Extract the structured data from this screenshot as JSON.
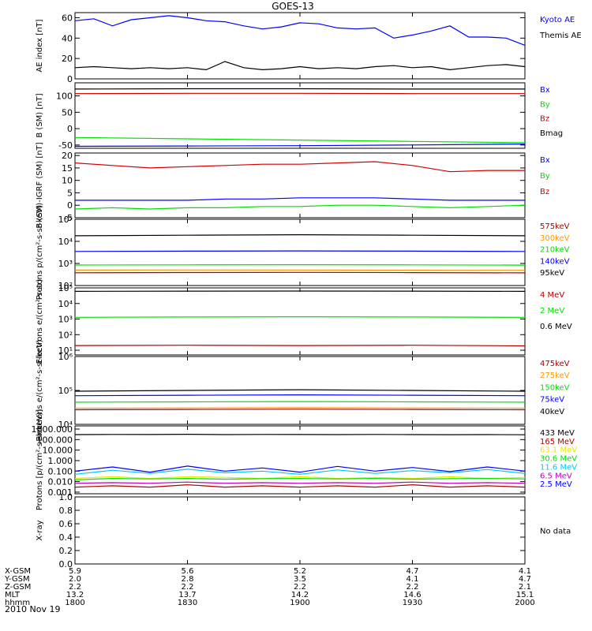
{
  "title": "GOES-13",
  "date": "2010 Nov 19",
  "colors": {
    "black": "#000000",
    "blue": "#0000ff",
    "green": "#00e000",
    "red": "#d00000",
    "darkred": "#b00000",
    "orange": "#ff9900",
    "yellow": "#e8e800",
    "cyan": "#00c8ff",
    "purple": "#c000c0"
  },
  "chart_data": [
    {
      "type": "line",
      "ylabel": "AE index [nT]",
      "ylim": [
        0,
        65
      ],
      "yticks": [
        0,
        20,
        40,
        60
      ],
      "yticklabels": [
        "0",
        "20",
        "40",
        "60"
      ],
      "scale": "linear",
      "x": [
        "1800",
        "1805",
        "1810",
        "1815",
        "1820",
        "1825",
        "1830",
        "1835",
        "1840",
        "1845",
        "1850",
        "1855",
        "1900",
        "1905",
        "1910",
        "1915",
        "1920",
        "1925",
        "1930",
        "1935",
        "1940",
        "1945",
        "1950",
        "1955",
        "2000"
      ],
      "series": [
        {
          "name": "Kyoto AE",
          "color": "blue",
          "values": [
            57,
            59,
            52,
            58,
            60,
            62,
            60,
            57,
            56,
            52,
            49,
            51,
            55,
            54,
            50,
            49,
            50,
            40,
            43,
            47,
            52,
            41,
            41,
            40,
            33
          ]
        },
        {
          "name": "Themis AE",
          "color": "black",
          "values": [
            11,
            12,
            11,
            10,
            11,
            10,
            11,
            9,
            17,
            11,
            9,
            10,
            12,
            10,
            11,
            10,
            12,
            13,
            11,
            12,
            9,
            11,
            13,
            14,
            12
          ]
        }
      ]
    },
    {
      "type": "line",
      "ylabel": "B (SM) [nT]",
      "ylim": [
        -60,
        140
      ],
      "yticks": [
        -50,
        0,
        50,
        100
      ],
      "yticklabels": [
        "-50",
        "0",
        "50",
        "100"
      ],
      "scale": "linear",
      "x": [
        "1800",
        "1830",
        "1900",
        "1930",
        "2000"
      ],
      "series": [
        {
          "name": "Bx",
          "color": "blue",
          "values": [
            -54,
            -53,
            -52,
            -50,
            -47
          ]
        },
        {
          "name": "By",
          "color": "green",
          "values": [
            -27,
            -31,
            -35,
            -39,
            -43
          ]
        },
        {
          "name": "Bz",
          "color": "red",
          "values": [
            107,
            108,
            108,
            107,
            107
          ]
        },
        {
          "name": "Bmag",
          "color": "black",
          "values": [
            121,
            122,
            122,
            121,
            121
          ]
        }
      ]
    },
    {
      "type": "line",
      "ylabel": "B (SM)-IGRF (SM) [nT]",
      "ylim": [
        -5,
        21
      ],
      "yticks": [
        -5,
        0,
        5,
        10,
        15,
        20
      ],
      "yticklabels": [
        "-5",
        "0",
        "5",
        "10",
        "15",
        "20"
      ],
      "scale": "linear",
      "x": [
        "1800",
        "1810",
        "1820",
        "1830",
        "1840",
        "1850",
        "1900",
        "1910",
        "1920",
        "1930",
        "1940",
        "1950",
        "2000"
      ],
      "series": [
        {
          "name": "Bx",
          "color": "blue",
          "values": [
            2,
            2,
            2,
            2,
            2.5,
            2.5,
            3,
            3,
            3,
            2.5,
            2,
            2,
            2
          ]
        },
        {
          "name": "By",
          "color": "green",
          "values": [
            -1.5,
            -1,
            -1.5,
            -1,
            -1,
            -0.5,
            -0.5,
            0,
            0,
            -0.5,
            -1,
            -0.5,
            0
          ]
        },
        {
          "name": "Bz",
          "color": "red",
          "values": [
            17,
            16,
            15,
            15.5,
            16,
            16.5,
            16.5,
            17,
            17.5,
            16,
            13.5,
            14,
            14
          ]
        }
      ]
    },
    {
      "type": "line",
      "ylabel": "Protons p/(cm²-s-sr-keV)",
      "ylim": [
        100,
        100000
      ],
      "yticks": [
        100,
        1000,
        10000,
        100000
      ],
      "yticklabels": [
        "10²",
        "10³",
        "10⁴",
        "10⁵"
      ],
      "scale": "log",
      "x": [
        "1800",
        "1830",
        "1900",
        "1930",
        "2000"
      ],
      "series": [
        {
          "name": "575keV",
          "color": "darkred",
          "values": [
            380,
            390,
            395,
            385,
            375
          ]
        },
        {
          "name": "300keV",
          "color": "orange",
          "values": [
            500,
            510,
            505,
            495,
            490
          ]
        },
        {
          "name": "210keV",
          "color": "green",
          "values": [
            850,
            860,
            880,
            860,
            840
          ]
        },
        {
          "name": "140keV",
          "color": "blue",
          "values": [
            3500,
            3600,
            3700,
            3600,
            3500
          ]
        },
        {
          "name": "95keV",
          "color": "black",
          "values": [
            18000,
            19000,
            20000,
            19000,
            18000
          ]
        }
      ]
    },
    {
      "type": "line",
      "ylabel": "Electrons e/(cm²-s-sr)",
      "ylim": [
        5,
        100000
      ],
      "yticks": [
        10,
        100,
        1000,
        10000,
        100000
      ],
      "yticklabels": [
        "10¹",
        "10²",
        "10³",
        "10⁴",
        "10⁵"
      ],
      "scale": "log",
      "x": [
        "1800",
        "1830",
        "1900",
        "1930",
        "2000"
      ],
      "series": [
        {
          "name": "4 MeV",
          "color": "darkred",
          "values": [
            20,
            21,
            20,
            21,
            19
          ]
        },
        {
          "name": "2 MeV",
          "color": "green",
          "values": [
            1300,
            1350,
            1400,
            1350,
            1300
          ]
        },
        {
          "name": "0.6 MeV",
          "color": "black",
          "values": [
            60000,
            62000,
            63000,
            62000,
            60000
          ]
        }
      ]
    },
    {
      "type": "line",
      "ylabel": "Electrons e/(cm²-s-sr-keV)",
      "ylim": [
        10000,
        1000000
      ],
      "yticks": [
        10000,
        100000,
        1000000
      ],
      "yticklabels": [
        "10⁴",
        "10⁵",
        "10⁶"
      ],
      "scale": "log",
      "x": [
        "1800",
        "1830",
        "1900",
        "1930",
        "2000"
      ],
      "series": [
        {
          "name": "475keV",
          "color": "darkred",
          "values": [
            27000,
            27500,
            28000,
            27500,
            27000
          ]
        },
        {
          "name": "275keV",
          "color": "orange",
          "values": [
            30000,
            30500,
            31000,
            30500,
            30000
          ]
        },
        {
          "name": "150keV",
          "color": "green",
          "values": [
            45000,
            46000,
            47000,
            46000,
            45000
          ]
        },
        {
          "name": "75keV",
          "color": "blue",
          "values": [
            70000,
            72000,
            74000,
            72000,
            70000
          ]
        },
        {
          "name": "40keV",
          "color": "black",
          "values": [
            95000,
            100000,
            105000,
            100000,
            95000
          ]
        }
      ]
    },
    {
      "type": "line",
      "ylabel": "Protons [p/(cm²-s-sr-keV)]",
      "ylim": [
        0.0007,
        2000
      ],
      "yticks": [
        0.001,
        0.01,
        0.1,
        1,
        10,
        100,
        1000
      ],
      "yticklabels": [
        "0.001",
        "0.010",
        "0.100",
        "1.000",
        "10.000",
        "100.000",
        "1000.000"
      ],
      "scale": "log",
      "x": [
        "1800",
        "1810",
        "1820",
        "1830",
        "1840",
        "1850",
        "1900",
        "1910",
        "1920",
        "1930",
        "1940",
        "1950",
        "2000"
      ],
      "series": [
        {
          "name": "433 MeV",
          "color": "black",
          "values": [
            300,
            310,
            305,
            320,
            300,
            310,
            305,
            300,
            310,
            300,
            295,
            300,
            290
          ]
        },
        {
          "name": "165 MeV",
          "color": "darkred",
          "values": [
            0.003,
            0.004,
            0.003,
            0.005,
            0.003,
            0.004,
            0.003,
            0.004,
            0.003,
            0.005,
            0.003,
            0.004,
            0.003
          ]
        },
        {
          "name": "63.1 MeV",
          "color": "yellow",
          "values": [
            0.02,
            0.03,
            0.02,
            0.03,
            0.025,
            0.02,
            0.03,
            0.02,
            0.025,
            0.02,
            0.03,
            0.02,
            0.025
          ]
        },
        {
          "name": "30.6 MeV",
          "color": "green",
          "values": [
            0.015,
            0.02,
            0.018,
            0.02,
            0.017,
            0.019,
            0.02,
            0.018,
            0.02,
            0.017,
            0.019,
            0.02,
            0.018
          ]
        },
        {
          "name": "11.6 MeV",
          "color": "cyan",
          "values": [
            0.05,
            0.12,
            0.06,
            0.15,
            0.07,
            0.1,
            0.05,
            0.13,
            0.06,
            0.11,
            0.07,
            0.14,
            0.06
          ]
        },
        {
          "name": "6.5 MeV",
          "color": "purple",
          "values": [
            0.007,
            0.008,
            0.007,
            0.009,
            0.007,
            0.008,
            0.007,
            0.008,
            0.007,
            0.009,
            0.007,
            0.008,
            0.007
          ]
        },
        {
          "name": "2.5 MeV",
          "color": "blue",
          "values": [
            0.1,
            0.25,
            0.08,
            0.3,
            0.1,
            0.2,
            0.08,
            0.28,
            0.1,
            0.22,
            0.09,
            0.25,
            0.1
          ]
        }
      ]
    },
    {
      "type": "line",
      "ylabel": "X-ray",
      "ylim": [
        0,
        1
      ],
      "yticks": [
        0,
        0.2,
        0.4,
        0.6,
        0.8,
        1.0
      ],
      "yticklabels": [
        "0.0",
        "0.2",
        "0.4",
        "0.6",
        "0.8",
        "1.0"
      ],
      "scale": "linear",
      "x": [],
      "series": [],
      "note": "No data"
    }
  ],
  "xaxis": {
    "ticks": [
      "1800",
      "1830",
      "1900",
      "1930",
      "2000"
    ],
    "rows": [
      {
        "label": "X-GSM",
        "values": [
          "5.9",
          "5.6",
          "5.2",
          "4.7",
          "4.1"
        ]
      },
      {
        "label": "Y-GSM",
        "values": [
          "2.0",
          "2.8",
          "3.5",
          "4.1",
          "4.7"
        ]
      },
      {
        "label": "Z-GSM",
        "values": [
          "2.2",
          "2.2",
          "2.2",
          "2.2",
          "2.1"
        ]
      },
      {
        "label": "MLT",
        "values": [
          "13.2",
          "13.7",
          "14.2",
          "14.6",
          "15.1"
        ]
      },
      {
        "label": "hhmm",
        "values": [
          "1800",
          "1830",
          "1900",
          "1930",
          "2000"
        ]
      }
    ]
  }
}
